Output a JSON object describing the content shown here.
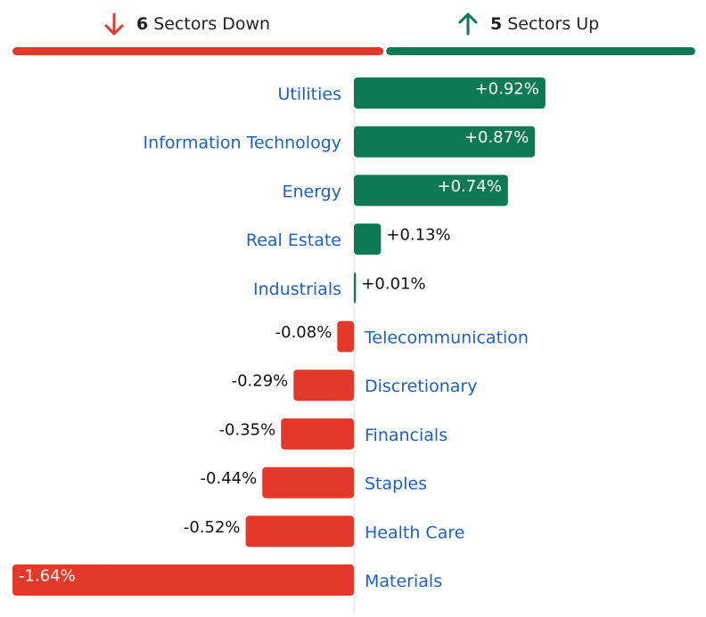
{
  "header": {
    "down_count": 6,
    "down_label": "Sectors Down",
    "up_count": 5,
    "up_label": "Sectors Up",
    "down_color": "#e3392a",
    "up_color": "#0e7a55"
  },
  "chart_data": {
    "type": "bar",
    "orientation": "horizontal",
    "categories": [
      "Utilities",
      "Information Technology",
      "Energy",
      "Real Estate",
      "Industrials",
      "Telecommunication",
      "Discretionary",
      "Financials",
      "Staples",
      "Health Care",
      "Materials"
    ],
    "values": [
      0.92,
      0.87,
      0.74,
      0.13,
      0.01,
      -0.08,
      -0.29,
      -0.35,
      -0.44,
      -0.52,
      -1.64
    ],
    "value_labels": [
      "+0.92%",
      "+0.87%",
      "+0.74%",
      "+0.13%",
      "+0.01%",
      "-0.08%",
      "-0.29%",
      "-0.35%",
      "-0.44%",
      "-0.52%",
      "-1.64%"
    ],
    "positive_color": "#0e7a55",
    "negative_color": "#e3392a"
  }
}
